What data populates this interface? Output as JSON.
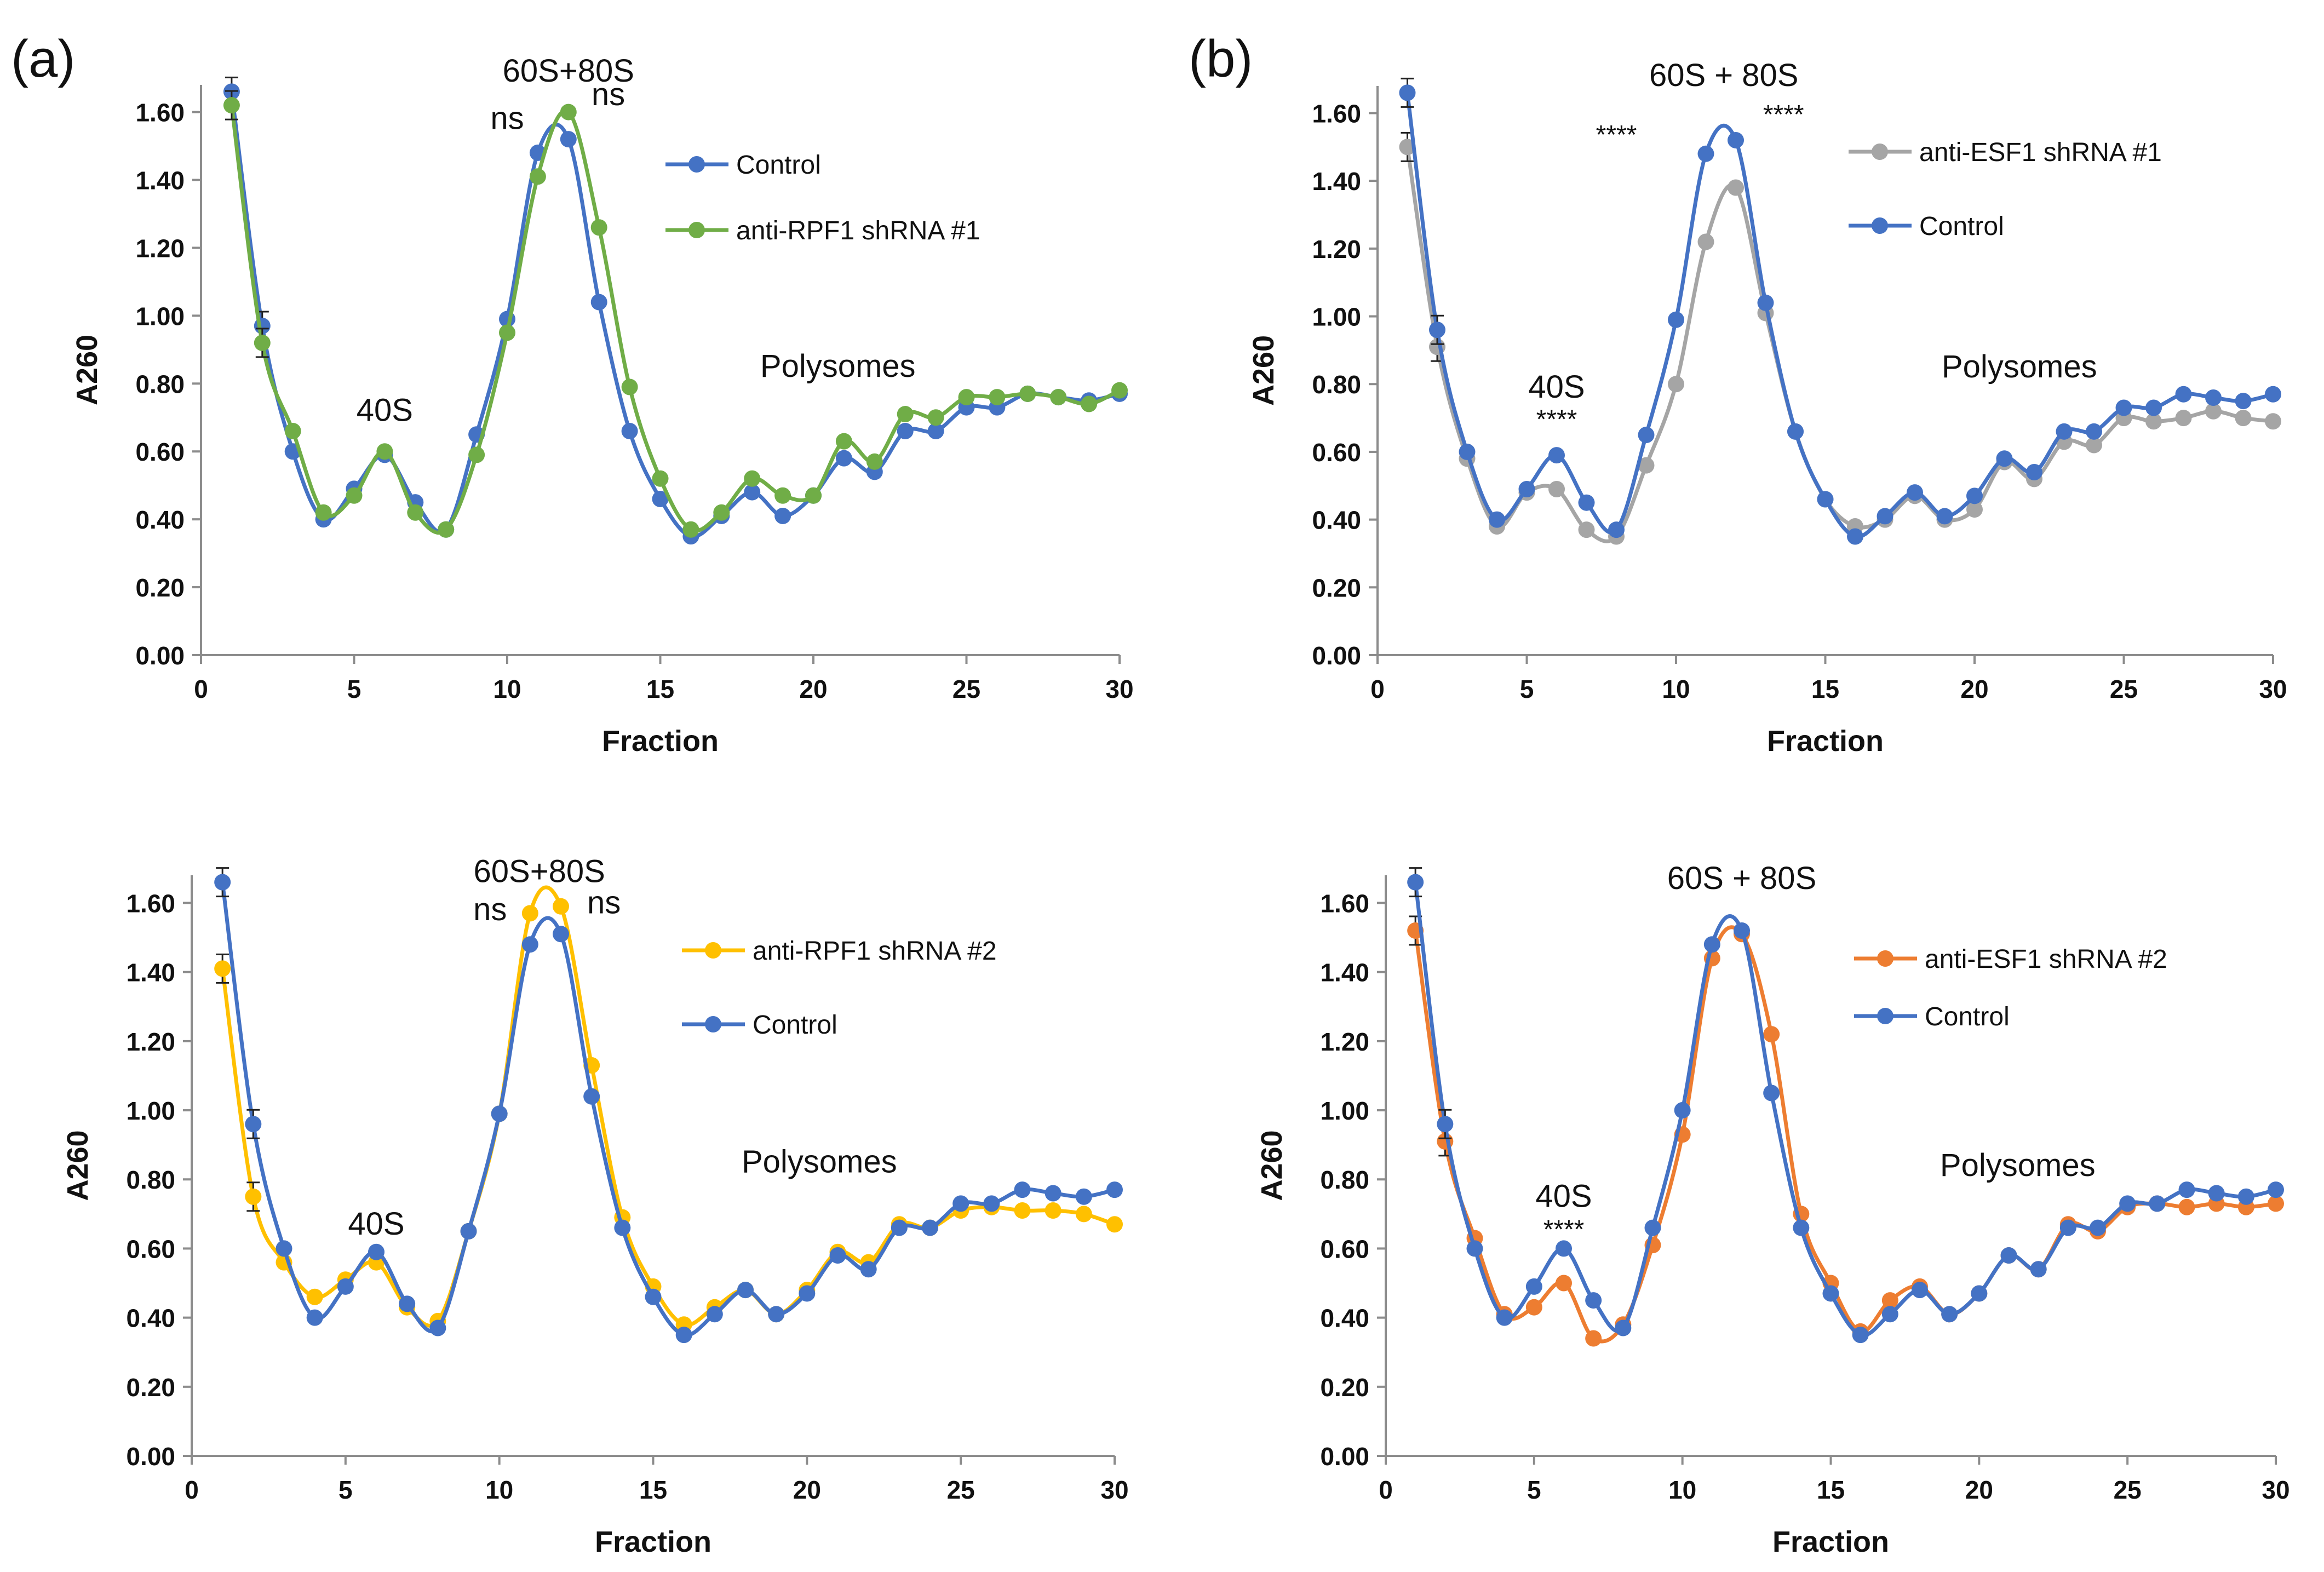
{
  "figure_labels": {
    "a": "(a)",
    "b": "(b)"
  },
  "colors": {
    "control": "#4472C4",
    "rpf1_1": "#70AD47",
    "rpf1_2": "#FFC000",
    "esf1_1": "#A5A5A5",
    "esf1_2": "#ED7D31",
    "axis": "#8c8c8c",
    "text": "#111111"
  },
  "chart_data": [
    {
      "id": "top-left",
      "type": "line",
      "xlabel": "Fraction",
      "ylabel": "A260",
      "xlim": [
        0,
        30
      ],
      "ylim": [
        0,
        1.6
      ],
      "xticks": [
        "0",
        "5",
        "10",
        "15",
        "20",
        "25",
        "30"
      ],
      "yticks": [
        "0.00",
        "0.20",
        "0.40",
        "0.60",
        "0.80",
        "1.00",
        "1.20",
        "1.40",
        "1.60"
      ],
      "legend": [
        {
          "label": "Control",
          "series": 0
        },
        {
          "label": "anti-RPF1 shRNA #1",
          "series": 1
        }
      ],
      "series": [
        {
          "name": "Control",
          "color": "#4472C4",
          "x": [
            1,
            2,
            3,
            4,
            5,
            6,
            7,
            8,
            9,
            10,
            11,
            12,
            13,
            14,
            15,
            16,
            17,
            18,
            19,
            20,
            21,
            22,
            23,
            24,
            25,
            26,
            27,
            28,
            29,
            30
          ],
          "values": [
            1.66,
            0.97,
            0.6,
            0.4,
            0.49,
            0.59,
            0.45,
            0.37,
            0.65,
            0.99,
            1.48,
            1.52,
            1.04,
            0.66,
            0.46,
            0.35,
            0.41,
            0.48,
            0.41,
            0.47,
            0.58,
            0.54,
            0.66,
            0.66,
            0.73,
            0.73,
            0.77,
            0.76,
            0.75,
            0.77
          ]
        },
        {
          "name": "anti-RPF1 shRNA #1",
          "color": "#70AD47",
          "x": [
            1,
            2,
            3,
            4,
            5,
            6,
            7,
            8,
            9,
            10,
            11,
            12,
            13,
            14,
            15,
            16,
            17,
            18,
            19,
            20,
            21,
            22,
            23,
            24,
            25,
            26,
            27,
            28,
            29,
            30
          ],
          "values": [
            1.62,
            0.92,
            0.66,
            0.42,
            0.47,
            0.6,
            0.42,
            0.37,
            0.59,
            0.95,
            1.41,
            1.6,
            1.26,
            0.79,
            0.52,
            0.37,
            0.42,
            0.52,
            0.47,
            0.47,
            0.63,
            0.57,
            0.71,
            0.7,
            0.76,
            0.76,
            0.77,
            0.76,
            0.74,
            0.78
          ]
        }
      ],
      "annotations": [
        {
          "text": "60S+80S",
          "x": 12,
          "y": 1.69,
          "size": 58
        },
        {
          "text": "ns",
          "x": 10,
          "y": 1.55,
          "size": 58
        },
        {
          "text": "ns",
          "x": 13.3,
          "y": 1.62,
          "size": 58
        },
        {
          "text": "40S",
          "x": 6,
          "y": 0.69,
          "size": 58
        },
        {
          "text": "Polysomes",
          "x": 20.8,
          "y": 0.82,
          "size": 58
        }
      ]
    },
    {
      "id": "top-right",
      "type": "line",
      "xlabel": "Fraction",
      "ylabel": "A260",
      "xlim": [
        0,
        30
      ],
      "ylim": [
        0,
        1.6
      ],
      "xticks": [
        "0",
        "5",
        "10",
        "15",
        "20",
        "25",
        "30"
      ],
      "yticks": [
        "0.00",
        "0.20",
        "0.40",
        "0.60",
        "0.80",
        "1.00",
        "1.20",
        "1.40",
        "1.60"
      ],
      "legend": [
        {
          "label": "anti-ESF1 shRNA #1",
          "series": 0
        },
        {
          "label": "Control",
          "series": 1
        }
      ],
      "series": [
        {
          "name": "anti-ESF1 shRNA #1",
          "color": "#A5A5A5",
          "x": [
            1,
            2,
            3,
            4,
            5,
            6,
            7,
            8,
            9,
            10,
            11,
            12,
            13,
            14,
            15,
            16,
            17,
            18,
            19,
            20,
            21,
            22,
            23,
            24,
            25,
            26,
            27,
            28,
            29,
            30
          ],
          "values": [
            1.5,
            0.91,
            0.58,
            0.38,
            0.48,
            0.49,
            0.37,
            0.35,
            0.56,
            0.8,
            1.22,
            1.38,
            1.01,
            0.66,
            0.46,
            0.38,
            0.4,
            0.47,
            0.4,
            0.43,
            0.57,
            0.52,
            0.63,
            0.62,
            0.7,
            0.69,
            0.7,
            0.72,
            0.7,
            0.69
          ]
        },
        {
          "name": "Control",
          "color": "#4472C4",
          "x": [
            1,
            2,
            3,
            4,
            5,
            6,
            7,
            8,
            9,
            10,
            11,
            12,
            13,
            14,
            15,
            16,
            17,
            18,
            19,
            20,
            21,
            22,
            23,
            24,
            25,
            26,
            27,
            28,
            29,
            30
          ],
          "values": [
            1.66,
            0.96,
            0.6,
            0.4,
            0.49,
            0.59,
            0.45,
            0.37,
            0.65,
            0.99,
            1.48,
            1.52,
            1.04,
            0.66,
            0.46,
            0.35,
            0.41,
            0.48,
            0.41,
            0.47,
            0.58,
            0.54,
            0.66,
            0.66,
            0.73,
            0.73,
            0.77,
            0.76,
            0.75,
            0.77
          ]
        }
      ],
      "annotations": [
        {
          "text": "60S + 80S",
          "x": 11.6,
          "y": 1.68,
          "size": 58
        },
        {
          "text": "****",
          "x": 8,
          "y": 1.51,
          "size": 48
        },
        {
          "text": "****",
          "x": 13.6,
          "y": 1.57,
          "size": 48
        },
        {
          "text": "40S",
          "x": 6,
          "y": 0.76,
          "size": 58
        },
        {
          "text": "****",
          "x": 6,
          "y": 0.67,
          "size": 48
        },
        {
          "text": "Polysomes",
          "x": 21.5,
          "y": 0.82,
          "size": 58
        }
      ]
    },
    {
      "id": "bottom-left",
      "type": "line",
      "xlabel": "Fraction",
      "ylabel": "A260",
      "xlim": [
        0,
        30
      ],
      "ylim": [
        0,
        1.6
      ],
      "xticks": [
        "0",
        "5",
        "10",
        "15",
        "20",
        "25",
        "30"
      ],
      "yticks": [
        "0.00",
        "0.20",
        "0.40",
        "0.60",
        "0.80",
        "1.00",
        "1.20",
        "1.40",
        "1.60"
      ],
      "legend": [
        {
          "label": "anti-RPF1 shRNA #2",
          "series": 0
        },
        {
          "label": "Control",
          "series": 1
        }
      ],
      "series": [
        {
          "name": "anti-RPF1 shRNA #2",
          "color": "#FFC000",
          "x": [
            1,
            2,
            3,
            4,
            5,
            6,
            7,
            8,
            9,
            10,
            11,
            12,
            13,
            14,
            15,
            16,
            17,
            18,
            19,
            20,
            21,
            22,
            23,
            24,
            25,
            26,
            27,
            28,
            29,
            30
          ],
          "values": [
            1.41,
            0.75,
            0.56,
            0.46,
            0.51,
            0.56,
            0.43,
            0.39,
            0.65,
            0.99,
            1.57,
            1.59,
            1.13,
            0.69,
            0.49,
            0.38,
            0.43,
            0.48,
            0.41,
            0.48,
            0.59,
            0.56,
            0.67,
            0.66,
            0.71,
            0.72,
            0.71,
            0.71,
            0.7,
            0.67
          ]
        },
        {
          "name": "Control",
          "color": "#4472C4",
          "x": [
            1,
            2,
            3,
            4,
            5,
            6,
            7,
            8,
            9,
            10,
            11,
            12,
            13,
            14,
            15,
            16,
            17,
            18,
            19,
            20,
            21,
            22,
            23,
            24,
            25,
            26,
            27,
            28,
            29,
            30
          ],
          "values": [
            1.66,
            0.96,
            0.6,
            0.4,
            0.49,
            0.59,
            0.44,
            0.37,
            0.65,
            0.99,
            1.48,
            1.51,
            1.04,
            0.66,
            0.46,
            0.35,
            0.41,
            0.48,
            0.41,
            0.47,
            0.58,
            0.54,
            0.66,
            0.66,
            0.73,
            0.73,
            0.77,
            0.76,
            0.75,
            0.77
          ]
        }
      ],
      "annotations": [
        {
          "text": "60S+80S",
          "x": 11.3,
          "y": 1.66,
          "size": 58
        },
        {
          "text": "ns",
          "x": 9.7,
          "y": 1.55,
          "size": 58
        },
        {
          "text": "ns",
          "x": 13.4,
          "y": 1.57,
          "size": 58
        },
        {
          "text": "40S",
          "x": 6,
          "y": 0.64,
          "size": 58
        },
        {
          "text": "Polysomes",
          "x": 20.4,
          "y": 0.82,
          "size": 58
        }
      ]
    },
    {
      "id": "bottom-right",
      "type": "line",
      "xlabel": "Fraction",
      "ylabel": "A260",
      "xlim": [
        0,
        30
      ],
      "ylim": [
        0,
        1.6
      ],
      "xticks": [
        "0",
        "5",
        "10",
        "15",
        "20",
        "25",
        "30"
      ],
      "yticks": [
        "0.00",
        "0.20",
        "0.40",
        "0.60",
        "0.80",
        "1.00",
        "1.20",
        "1.40",
        "1.60"
      ],
      "legend": [
        {
          "label": "anti-ESF1 shRNA #2",
          "series": 0
        },
        {
          "label": "Control",
          "series": 1
        }
      ],
      "series": [
        {
          "name": "anti-ESF1 shRNA #2",
          "color": "#ED7D31",
          "x": [
            1,
            2,
            3,
            4,
            5,
            6,
            7,
            8,
            9,
            10,
            11,
            12,
            13,
            14,
            15,
            16,
            17,
            18,
            19,
            20,
            21,
            22,
            23,
            24,
            25,
            26,
            27,
            28,
            29,
            30
          ],
          "values": [
            1.52,
            0.91,
            0.63,
            0.41,
            0.43,
            0.5,
            0.34,
            0.38,
            0.61,
            0.93,
            1.44,
            1.51,
            1.22,
            0.7,
            0.5,
            0.36,
            0.45,
            0.49,
            0.41,
            0.47,
            0.58,
            0.54,
            0.67,
            0.65,
            0.72,
            0.73,
            0.72,
            0.73,
            0.72,
            0.73
          ]
        },
        {
          "name": "Control",
          "color": "#4472C4",
          "x": [
            1,
            2,
            3,
            4,
            5,
            6,
            7,
            8,
            9,
            10,
            11,
            12,
            13,
            14,
            15,
            16,
            17,
            18,
            19,
            20,
            21,
            22,
            23,
            24,
            25,
            26,
            27,
            28,
            29,
            30
          ],
          "values": [
            1.66,
            0.96,
            0.6,
            0.4,
            0.49,
            0.6,
            0.45,
            0.37,
            0.66,
            1.0,
            1.48,
            1.52,
            1.05,
            0.66,
            0.47,
            0.35,
            0.41,
            0.48,
            0.41,
            0.47,
            0.58,
            0.54,
            0.66,
            0.66,
            0.73,
            0.73,
            0.77,
            0.76,
            0.75,
            0.77
          ]
        }
      ],
      "annotations": [
        {
          "text": "60S + 80S",
          "x": 12,
          "y": 1.64,
          "size": 58
        },
        {
          "text": "40S",
          "x": 6,
          "y": 0.72,
          "size": 58
        },
        {
          "text": "****",
          "x": 6,
          "y": 0.63,
          "size": 48
        },
        {
          "text": "Polysomes",
          "x": 21.3,
          "y": 0.81,
          "size": 58
        }
      ]
    }
  ]
}
